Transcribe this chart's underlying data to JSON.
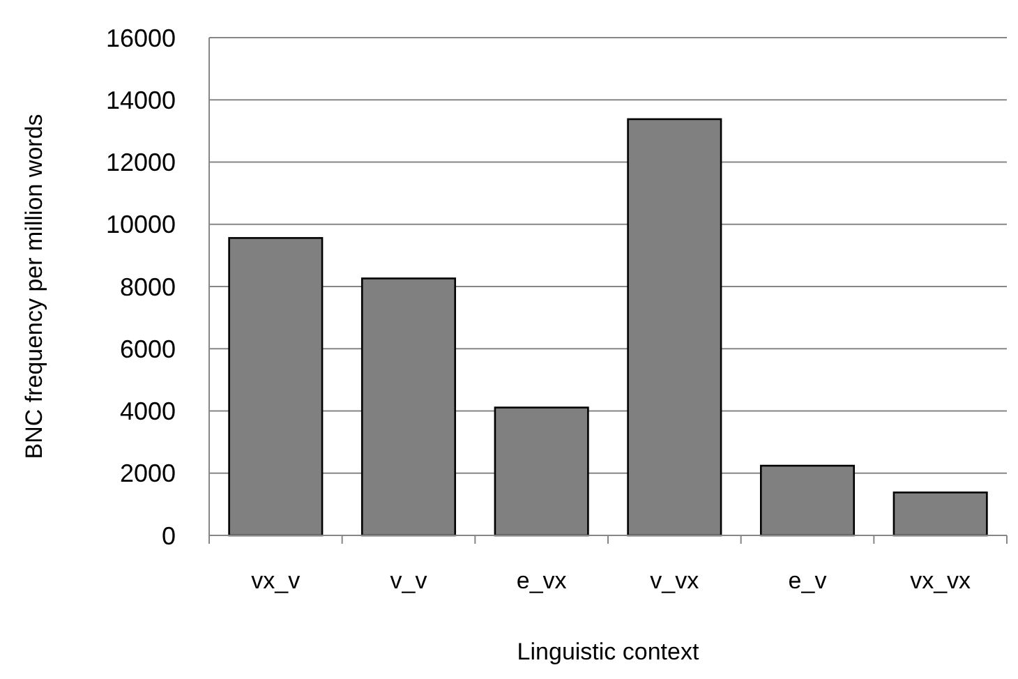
{
  "chart_data": {
    "type": "bar",
    "xlabel": "Linguistic context",
    "ylabel": "BNC frequency per million words",
    "categories": [
      "vx_v",
      "v_v",
      "e_vx",
      "v_vx",
      "e_v",
      "vx_vx"
    ],
    "values": [
      9560,
      8260,
      4110,
      13380,
      2240,
      1380
    ],
    "color": "#808080",
    "ylim": [
      0,
      16000
    ],
    "yticks": [
      0,
      2000,
      4000,
      6000,
      8000,
      10000,
      12000,
      14000,
      16000
    ],
    "grid": "y"
  }
}
